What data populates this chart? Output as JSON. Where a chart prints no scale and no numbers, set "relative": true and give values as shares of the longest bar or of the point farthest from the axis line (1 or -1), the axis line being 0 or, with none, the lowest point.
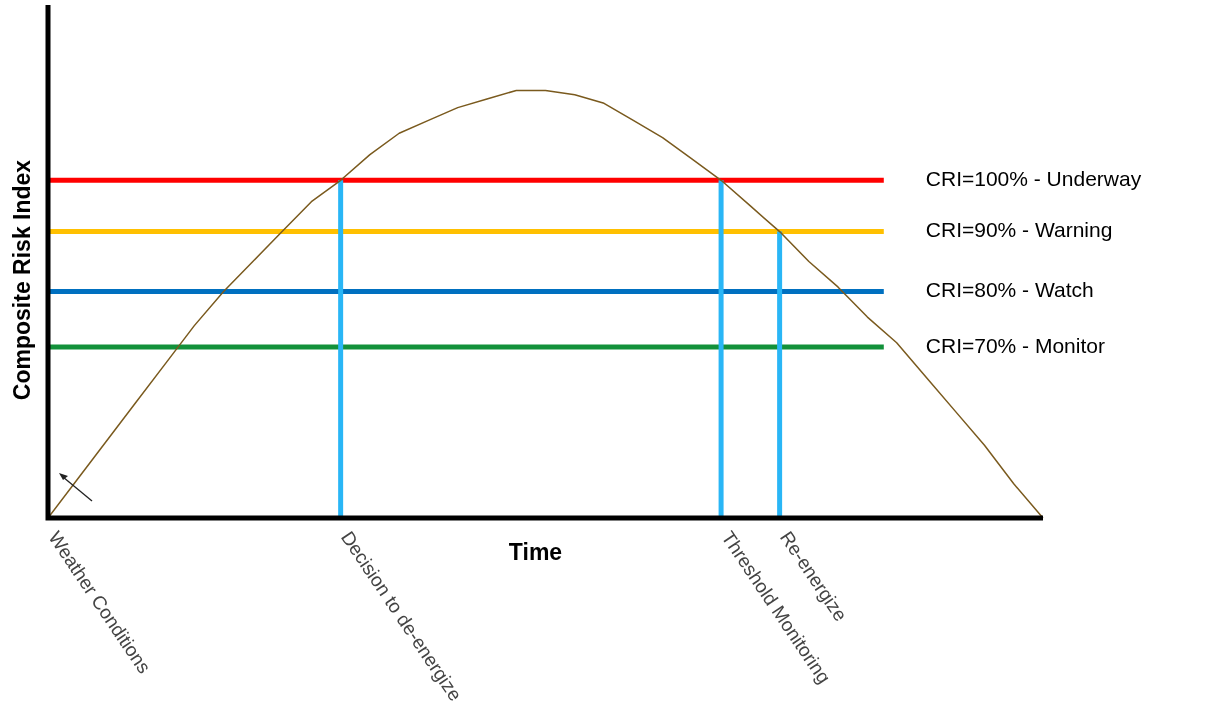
{
  "chart_data": {
    "type": "line",
    "relative": true,
    "xlabel": "Time",
    "ylabel": "Composite Risk Index",
    "annotations": [
      "CRI=100% - Underway",
      "CRI=90% - Warning",
      "CRI=80% - Watch",
      "CRI=70% - Monitor"
    ],
    "categories": [
      "Weather Conditions",
      null,
      null,
      null,
      null,
      null,
      null,
      null,
      null,
      null,
      "Decision to de-energize",
      null,
      null,
      null,
      null,
      null,
      null,
      null,
      null,
      null,
      null,
      null,
      null,
      "Threshold Monitoring",
      null,
      "Re-energize",
      null,
      null,
      null,
      null,
      null,
      null,
      null,
      null,
      null
    ],
    "series": [
      {
        "color": "#7a5a1e",
        "values": [
          0,
          0.09,
          0.18,
          0.27,
          0.36,
          0.45,
          0.53,
          0.6,
          0.67,
          0.74,
          0.79,
          0.85,
          0.9,
          0.93,
          0.96,
          0.98,
          1,
          1,
          0.99,
          0.97,
          0.93,
          0.89,
          0.84,
          0.79,
          0.73,
          0.67,
          0.6,
          0.54,
          0.47,
          0.41,
          0.33,
          0.25,
          0.17,
          0.08,
          0
        ]
      }
    ],
    "ref_lines": [
      {
        "axis": "y",
        "value": 0.79,
        "color": "#ff0000"
      },
      {
        "axis": "y",
        "value": 0.67,
        "color": "#ffc000"
      },
      {
        "axis": "y",
        "value": 0.53,
        "color": "#0070c0"
      },
      {
        "axis": "y",
        "value": 0.4,
        "color": "#12913a"
      },
      {
        "axis": "x",
        "value": "Decision to de-energize",
        "color": "#29b6f6"
      },
      {
        "axis": "x",
        "value": "Threshold Monitoring",
        "color": "#29b6f6"
      },
      {
        "axis": "x",
        "value": "Re-energize",
        "color": "#29b6f6"
      }
    ],
    "legend": false,
    "marker": "none",
    "line_style": "solid"
  }
}
